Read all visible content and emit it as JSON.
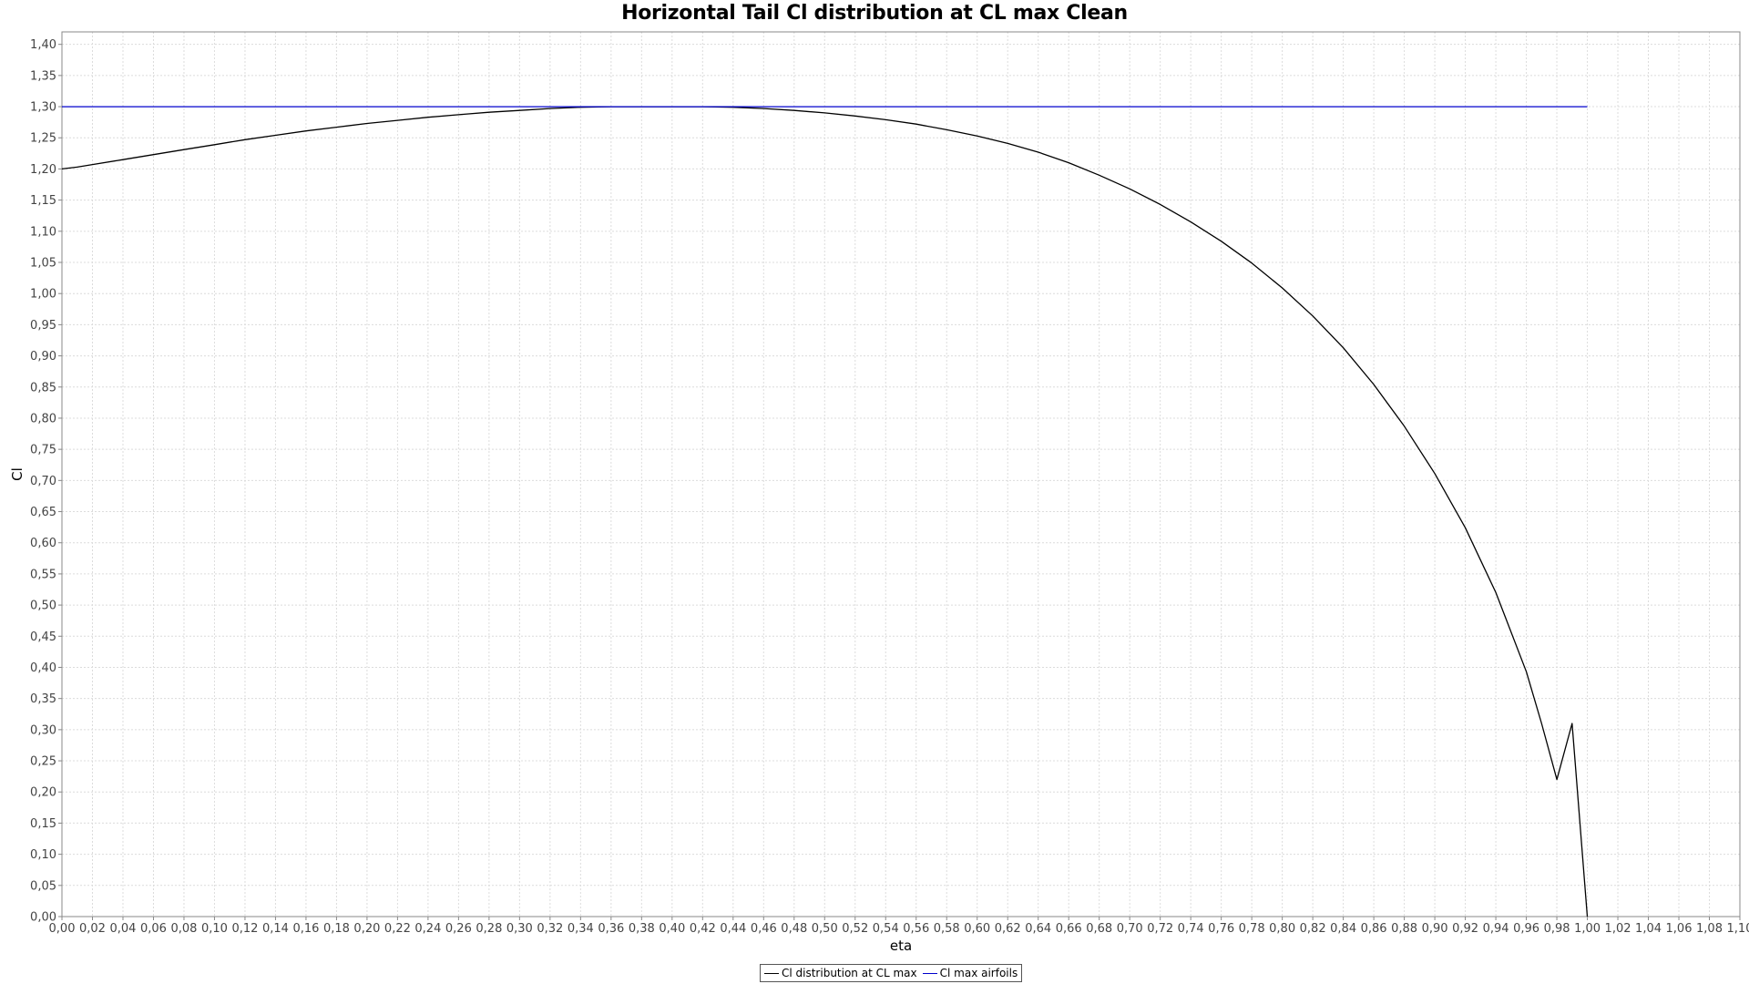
{
  "chart_data": {
    "type": "line",
    "title": "Horizontal Tail Cl distribution at CL max Clean",
    "xlabel": "eta",
    "ylabel": "Cl",
    "xlim": [
      0,
      1.1
    ],
    "ylim": [
      0,
      1.42
    ],
    "x_ticks": [
      "0,00",
      "0,02",
      "0,04",
      "0,06",
      "0,08",
      "0,10",
      "0,12",
      "0,14",
      "0,16",
      "0,18",
      "0,20",
      "0,22",
      "0,24",
      "0,26",
      "0,28",
      "0,30",
      "0,32",
      "0,34",
      "0,36",
      "0,38",
      "0,40",
      "0,42",
      "0,44",
      "0,46",
      "0,48",
      "0,50",
      "0,52",
      "0,54",
      "0,56",
      "0,58",
      "0,60",
      "0,62",
      "0,64",
      "0,66",
      "0,68",
      "0,70",
      "0,72",
      "0,74",
      "0,76",
      "0,78",
      "0,80",
      "0,82",
      "0,84",
      "0,86",
      "0,88",
      "0,90",
      "0,92",
      "0,94",
      "0,96",
      "0,98",
      "1,00",
      "1,02",
      "1,04",
      "1,06",
      "1,08",
      "1,10"
    ],
    "y_ticks": [
      "0,00",
      "0,05",
      "0,10",
      "0,15",
      "0,20",
      "0,25",
      "0,30",
      "0,35",
      "0,40",
      "0,45",
      "0,50",
      "0,55",
      "0,60",
      "0,65",
      "0,70",
      "0,75",
      "0,80",
      "0,85",
      "0,90",
      "0,95",
      "1,00",
      "1,05",
      "1,10",
      "1,15",
      "1,20",
      "1,25",
      "1,30",
      "1,35",
      "1,40"
    ],
    "grid": true,
    "legend_position": "bottom-center",
    "series": [
      {
        "name": "Cl distribution at CL max",
        "color": "#000000",
        "x": [
          0.0,
          0.01,
          0.02,
          0.04,
          0.06,
          0.08,
          0.1,
          0.12,
          0.14,
          0.16,
          0.18,
          0.2,
          0.22,
          0.24,
          0.26,
          0.28,
          0.3,
          0.32,
          0.34,
          0.36,
          0.38,
          0.4,
          0.42,
          0.44,
          0.46,
          0.48,
          0.5,
          0.52,
          0.54,
          0.56,
          0.58,
          0.6,
          0.62,
          0.64,
          0.66,
          0.68,
          0.7,
          0.72,
          0.74,
          0.76,
          0.78,
          0.8,
          0.82,
          0.84,
          0.86,
          0.88,
          0.9,
          0.92,
          0.94,
          0.96,
          0.97,
          0.98,
          0.99,
          1.0
        ],
        "y": [
          1.2,
          1.203,
          1.207,
          1.215,
          1.223,
          1.231,
          1.239,
          1.247,
          1.254,
          1.261,
          1.267,
          1.273,
          1.278,
          1.283,
          1.287,
          1.291,
          1.294,
          1.297,
          1.299,
          1.3,
          1.3,
          1.3,
          1.3,
          1.299,
          1.297,
          1.294,
          1.29,
          1.285,
          1.279,
          1.272,
          1.263,
          1.253,
          1.241,
          1.227,
          1.21,
          1.19,
          1.168,
          1.143,
          1.115,
          1.084,
          1.049,
          1.009,
          0.964,
          0.913,
          0.854,
          0.787,
          0.711,
          0.624,
          0.52,
          0.393,
          0.31,
          0.22,
          0.31,
          0.0
        ]
      },
      {
        "name": "Cl max airfoils",
        "color": "#0000cc",
        "x": [
          0.0,
          1.0
        ],
        "y": [
          1.3,
          1.3
        ]
      }
    ]
  }
}
